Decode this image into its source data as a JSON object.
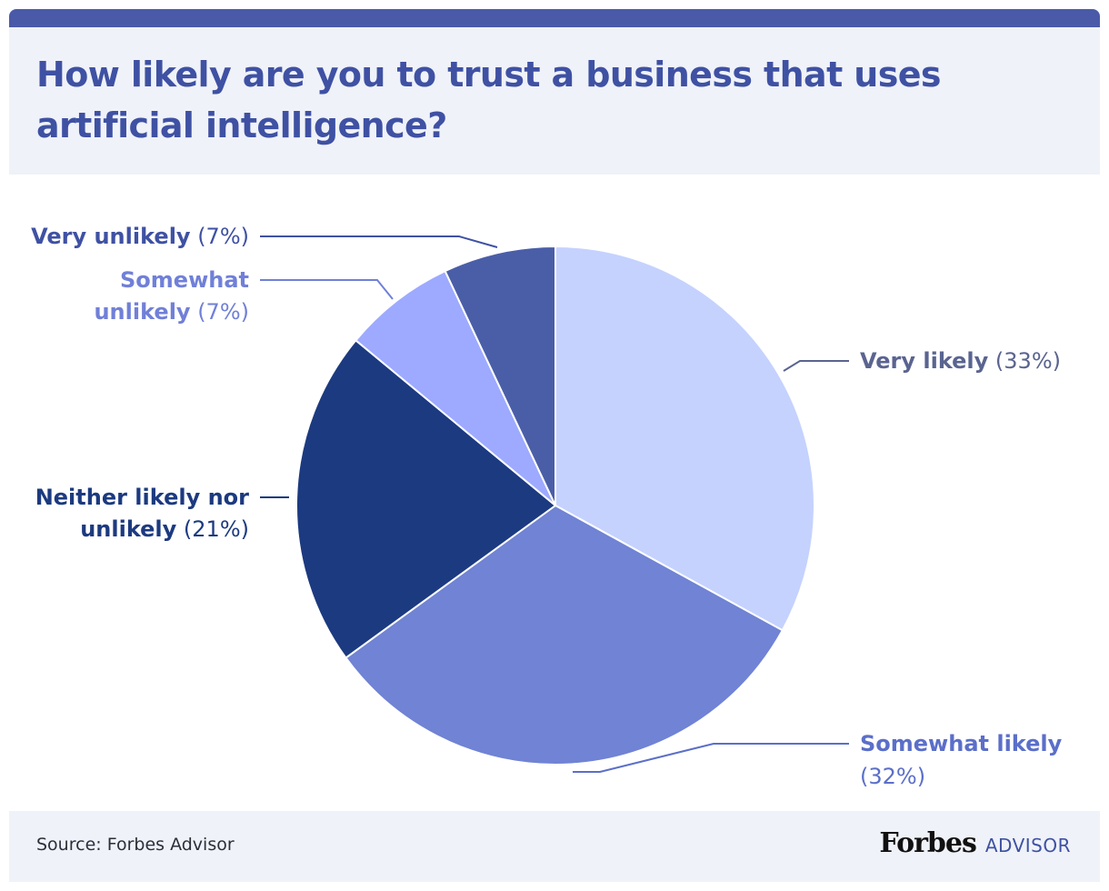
{
  "header": {
    "title": "How likely are you to trust a business that uses artificial intelligence?"
  },
  "footer": {
    "source": "Source: Forbes Advisor",
    "logo_main": "Forbes",
    "logo_sub": "ADVISOR"
  },
  "chart_data": {
    "type": "pie",
    "title": "How likely are you to trust a business that uses artificial intelligence?",
    "slices": [
      {
        "name": "Very likely",
        "value": 33,
        "pct_text": "(33%)",
        "color": "#c5d2fe",
        "label_color": "#5a6490"
      },
      {
        "name": "Somewhat likely",
        "value": 32,
        "pct_text": "(32%)",
        "color": "#7083d4",
        "label_color": "#5b6fc9"
      },
      {
        "name": "Neither likely nor unlikely",
        "value": 21,
        "pct_text": "(21%)",
        "color": "#1c3a80",
        "label_color": "#1c3a80"
      },
      {
        "name": "Somewhat unlikely",
        "value": 7,
        "pct_text": "(7%)",
        "color": "#9daaff",
        "label_color": "#7080d8"
      },
      {
        "name": "Very unlikely",
        "value": 7,
        "pct_text": "(7%)",
        "color": "#4a5ea8",
        "label_color": "#3f51a3"
      }
    ]
  }
}
